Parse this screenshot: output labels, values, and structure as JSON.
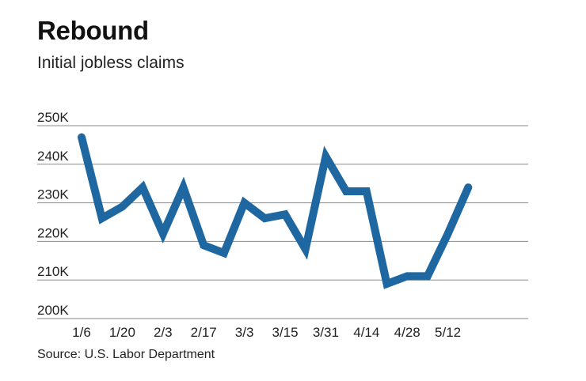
{
  "chart_data": {
    "type": "line",
    "title": "Rebound",
    "subtitle": "Initial jobless claims",
    "source": "Source: U.S. Labor Department",
    "xlabel": "",
    "ylabel": "",
    "x_tick_labels": [
      "1/6",
      "1/20",
      "2/3",
      "2/17",
      "3/3",
      "3/15",
      "3/31",
      "4/14",
      "4/28",
      "5/12"
    ],
    "y_tick_labels": [
      "200K",
      "210K",
      "220K",
      "230K",
      "240K",
      "250K"
    ],
    "y_ticks": [
      200,
      210,
      220,
      230,
      240,
      250
    ],
    "ylim": [
      200,
      250
    ],
    "y_unit": "thousands",
    "grid": true,
    "line_color": "#1f67a0",
    "values": [
      247,
      226,
      229,
      234,
      222,
      234,
      219,
      217,
      230,
      226,
      227,
      218,
      242,
      233,
      233,
      209,
      211,
      211,
      222,
      234
    ]
  }
}
